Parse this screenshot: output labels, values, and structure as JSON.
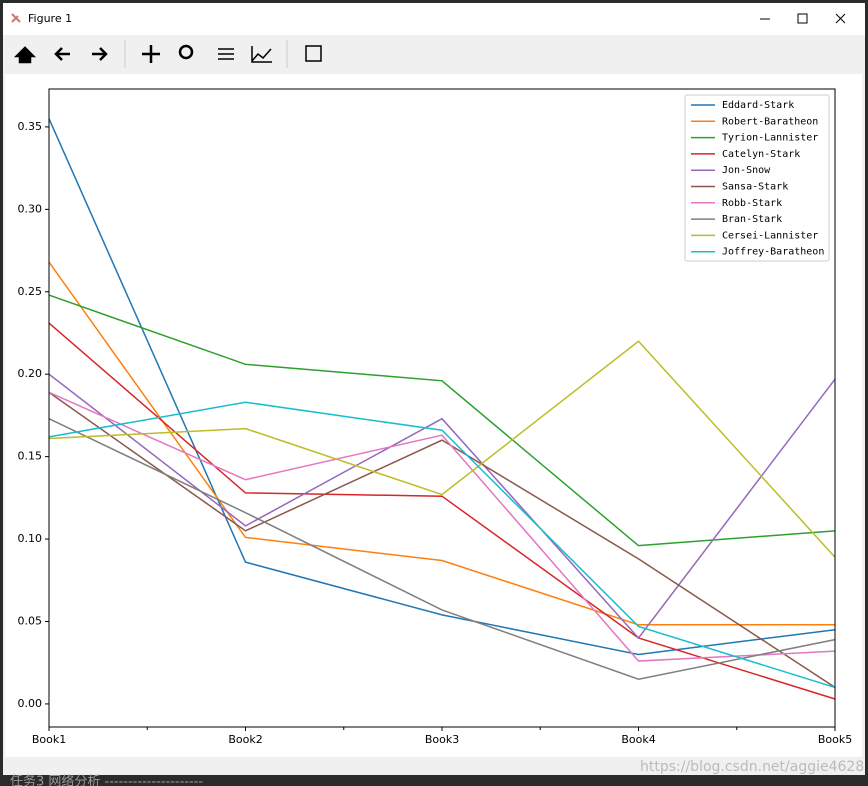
{
  "window": {
    "title": "Figure 1"
  },
  "watermark": "https://blog.csdn.net/aggie4628",
  "background_text": "任务3  网络分析 ---------------------",
  "chart_data": {
    "type": "line",
    "categories": [
      "Book1",
      "Book2",
      "Book3",
      "Book4",
      "Book5"
    ],
    "ylim": [
      -0.014,
      0.373
    ],
    "yticks": [
      {
        "value": 0,
        "label": "0.00"
      },
      {
        "value": 0.05,
        "label": "0.05"
      },
      {
        "value": 0.1,
        "label": "0.10"
      },
      {
        "value": 0.15,
        "label": "0.15"
      },
      {
        "value": 0.2,
        "label": "0.20"
      },
      {
        "value": 0.25,
        "label": "0.25"
      },
      {
        "value": 0.3,
        "label": "0.30"
      },
      {
        "value": 0.35,
        "label": "0.35"
      }
    ],
    "legend": "upper right",
    "series": [
      {
        "name": "Eddard-Stark",
        "color": "#1f77b4",
        "values": [
          0.355,
          0.086,
          0.054,
          0.03,
          0.045
        ]
      },
      {
        "name": "Robert-Baratheon",
        "color": "#ff7f0e",
        "values": [
          0.268,
          0.101,
          0.087,
          0.048,
          0.048
        ]
      },
      {
        "name": "Tyrion-Lannister",
        "color": "#2ca02c",
        "values": [
          0.248,
          0.206,
          0.196,
          0.096,
          0.105
        ]
      },
      {
        "name": "Catelyn-Stark",
        "color": "#d62728",
        "values": [
          0.231,
          0.128,
          0.126,
          0.04,
          0.003
        ]
      },
      {
        "name": "Jon-Snow",
        "color": "#9467bd",
        "values": [
          0.2,
          0.108,
          0.173,
          0.04,
          0.197
        ]
      },
      {
        "name": "Sansa-Stark",
        "color": "#8c564b",
        "values": [
          0.189,
          0.105,
          0.16,
          0.088,
          0.01
        ]
      },
      {
        "name": "Robb-Stark",
        "color": "#e377c2",
        "values": [
          0.189,
          0.136,
          0.163,
          0.026,
          0.032
        ]
      },
      {
        "name": "Bran-Stark",
        "color": "#7f7f7f",
        "values": [
          0.173,
          0.116,
          0.057,
          0.015,
          0.039
        ]
      },
      {
        "name": "Cersei-Lannister",
        "color": "#bcbd22",
        "values": [
          0.161,
          0.167,
          0.127,
          0.22,
          0.089
        ]
      },
      {
        "name": "Joffrey-Baratheon",
        "color": "#17becf",
        "values": [
          0.162,
          0.183,
          0.166,
          0.047,
          0.01
        ]
      }
    ]
  }
}
